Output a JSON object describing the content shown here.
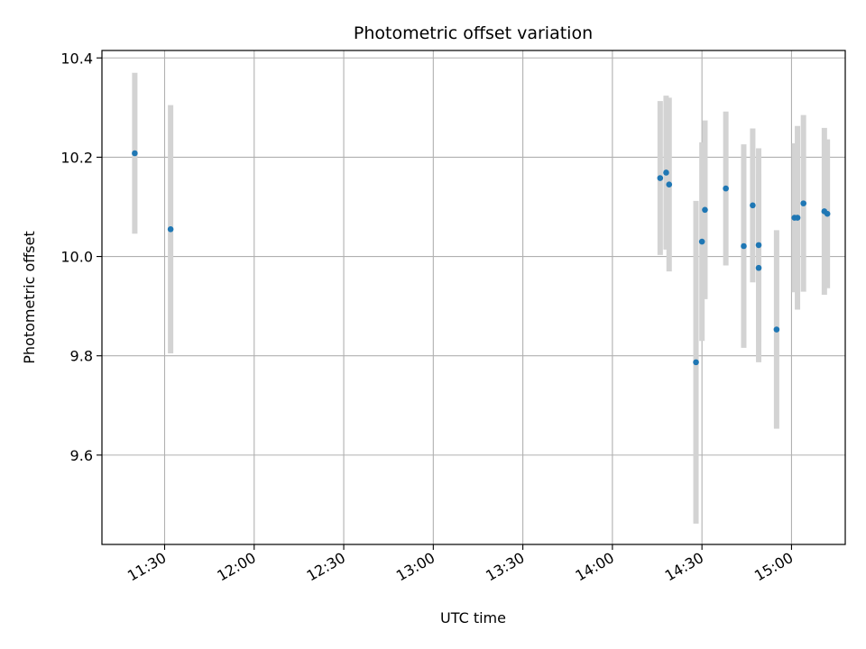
{
  "chart_data": {
    "type": "scatter",
    "title": "Photometric offset variation",
    "xlabel": "UTC time",
    "ylabel": "Photometric offset",
    "xlim": [
      "11:09",
      "15:18"
    ],
    "ylim": [
      9.42,
      10.415
    ],
    "x_ticks": [
      "11:30",
      "12:00",
      "12:30",
      "13:00",
      "13:30",
      "14:00",
      "14:30",
      "15:00"
    ],
    "y_ticks": [
      9.6,
      9.8,
      10.0,
      10.2,
      10.4
    ],
    "grid": true,
    "colors": {
      "point": "#1f77b4",
      "errorbar": "#d3d3d3",
      "grid": "#b0b0b0"
    },
    "points": [
      {
        "x": "11:20",
        "y": 10.208,
        "yerr": 0.162
      },
      {
        "x": "11:32",
        "y": 10.055,
        "yerr": 0.25
      },
      {
        "x": "14:16",
        "y": 10.158,
        "yerr": 0.155
      },
      {
        "x": "14:18",
        "y": 10.169,
        "yerr": 0.155
      },
      {
        "x": "14:19",
        "y": 10.145,
        "yerr": 0.175
      },
      {
        "x": "14:28",
        "y": 9.787,
        "yerr": 0.325
      },
      {
        "x": "14:30",
        "y": 10.03,
        "yerr": 0.2
      },
      {
        "x": "14:31",
        "y": 10.094,
        "yerr": 0.18
      },
      {
        "x": "14:38",
        "y": 10.137,
        "yerr": 0.155
      },
      {
        "x": "14:44",
        "y": 10.021,
        "yerr": 0.205
      },
      {
        "x": "14:47",
        "y": 10.103,
        "yerr": 0.155
      },
      {
        "x": "14:49",
        "y": 10.023,
        "yerr": 0.195
      },
      {
        "x": "14:49",
        "y": 9.977,
        "yerr": 0.19
      },
      {
        "x": "14:55",
        "y": 9.853,
        "yerr": 0.2
      },
      {
        "x": "15:01",
        "y": 10.078,
        "yerr": 0.15
      },
      {
        "x": "15:02",
        "y": 10.078,
        "yerr": 0.185
      },
      {
        "x": "15:04",
        "y": 10.107,
        "yerr": 0.178
      },
      {
        "x": "15:11",
        "y": 10.091,
        "yerr": 0.168
      },
      {
        "x": "15:12",
        "y": 10.086,
        "yerr": 0.15
      }
    ]
  }
}
